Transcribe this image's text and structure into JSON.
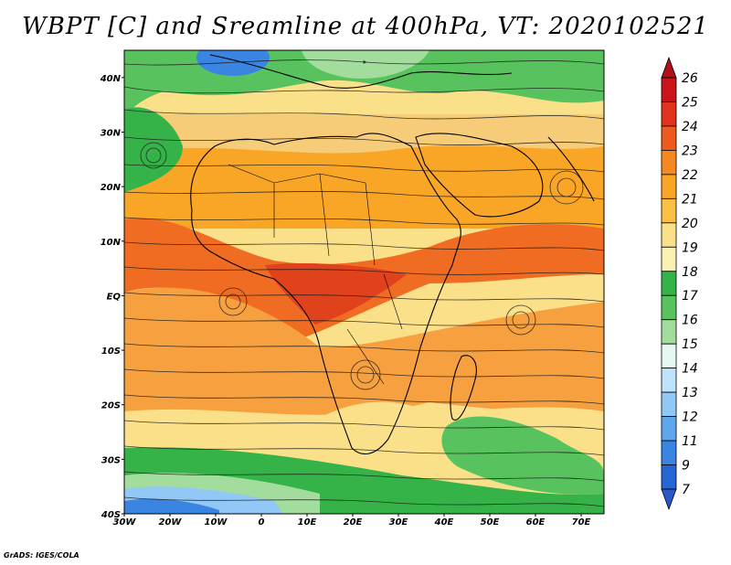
{
  "title": "WBPT [C] and Sreamline at 400hPa, VT: 2020102521",
  "credit": "GrADS: IGES/COLA",
  "map": {
    "lat_labels": [
      "40N",
      "30N",
      "20N",
      "10N",
      "EQ",
      "10S",
      "20S",
      "30S",
      "40S"
    ],
    "lon_labels": [
      "30W",
      "20W",
      "10W",
      "0",
      "10E",
      "20E",
      "30E",
      "40E",
      "50E",
      "60E",
      "70E"
    ],
    "lon_range": [
      -30,
      75
    ],
    "lat_range": [
      -40,
      45
    ]
  },
  "colorbar": {
    "labels": [
      "26",
      "25",
      "24",
      "23",
      "22",
      "21",
      "20",
      "19",
      "18",
      "17",
      "16",
      "15",
      "14",
      "13",
      "12",
      "11",
      "9",
      "7"
    ],
    "colors": [
      "#b0101a",
      "#c8141a",
      "#e0321c",
      "#ec5a1e",
      "#f5881e",
      "#f9a526",
      "#fac043",
      "#fbe08a",
      "#fbf2b2",
      "#36b348",
      "#58c35e",
      "#a3dd9e",
      "#e6f8f2",
      "#bfe3fa",
      "#92c8f5",
      "#5ea7ec",
      "#3a85e2",
      "#2566d6",
      "#2a58c8"
    ]
  }
}
